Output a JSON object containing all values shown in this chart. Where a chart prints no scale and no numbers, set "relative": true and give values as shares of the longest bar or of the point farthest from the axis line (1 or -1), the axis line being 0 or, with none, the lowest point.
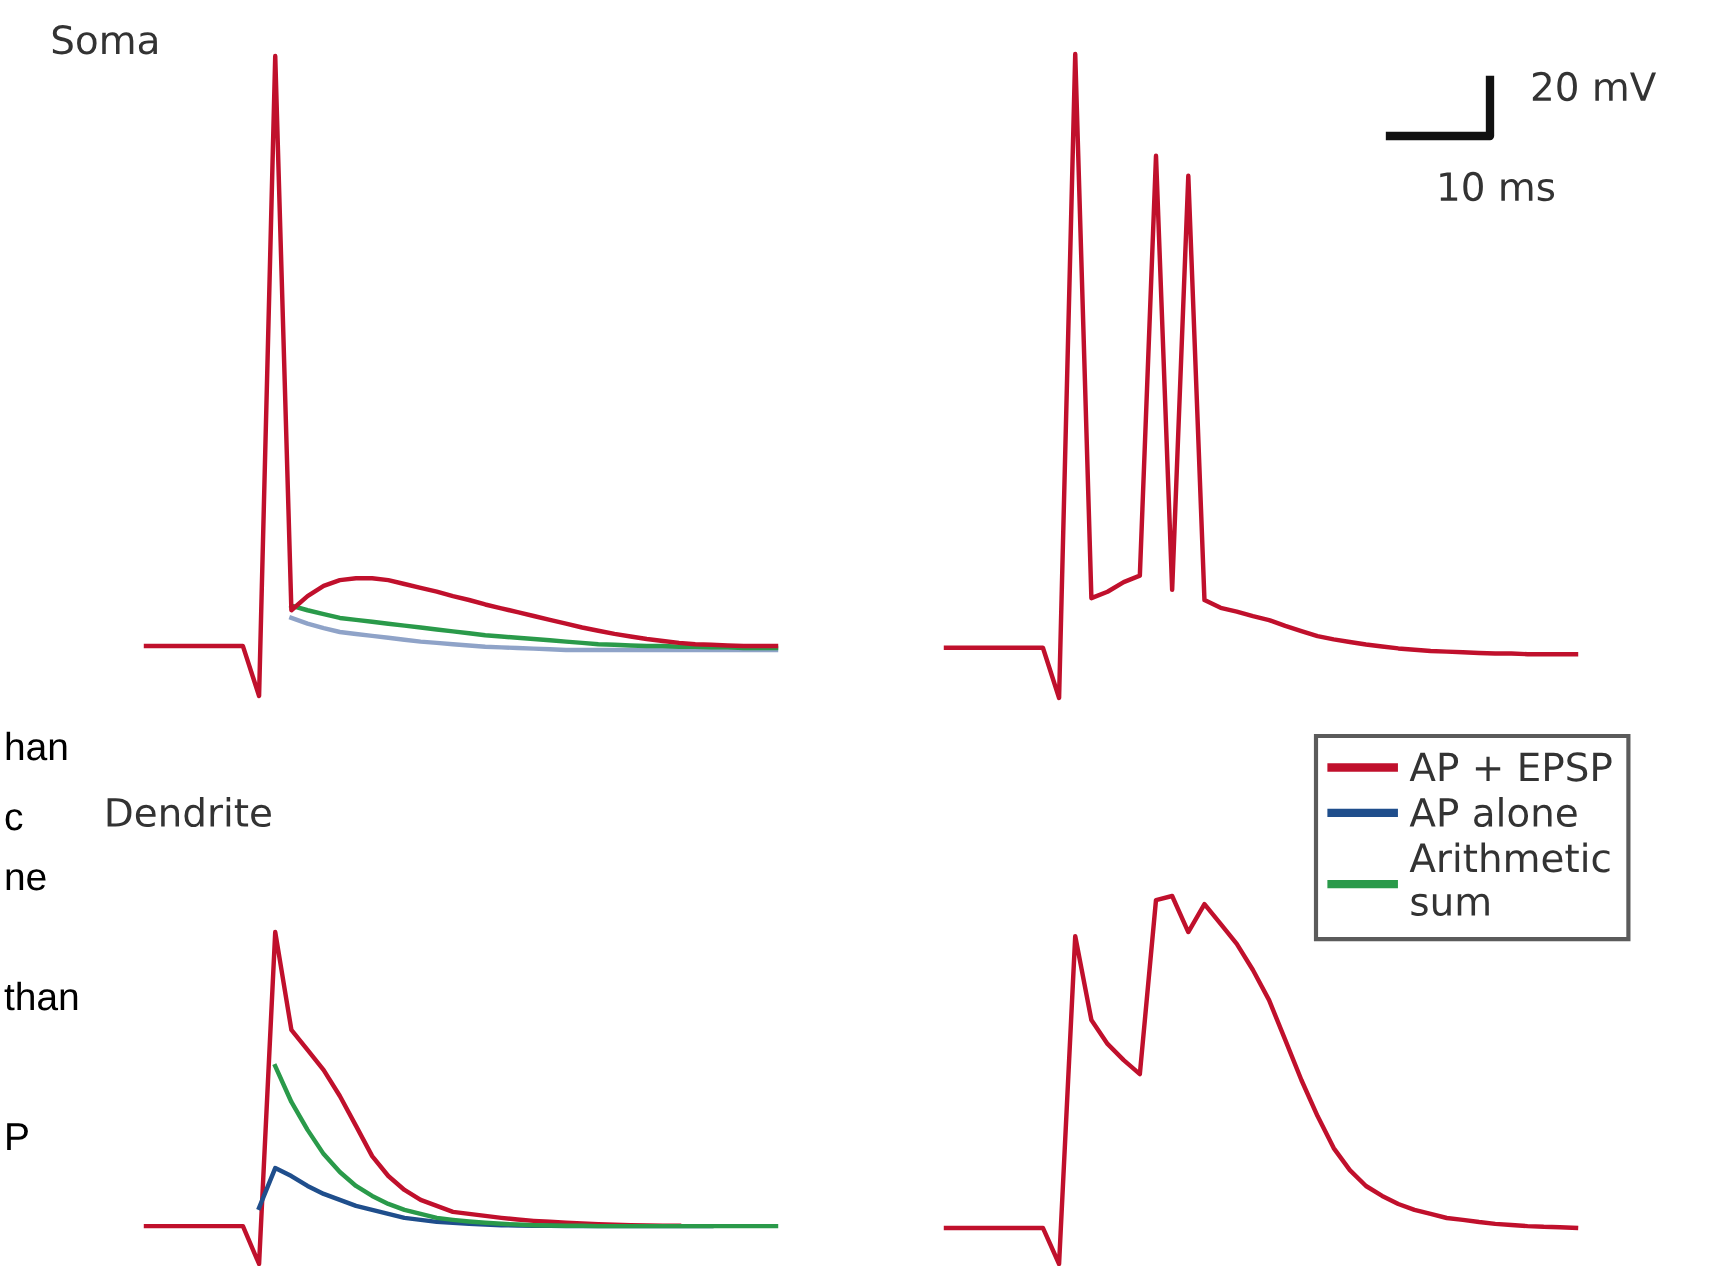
{
  "chart_data": [
    {
      "type": "line",
      "title": "Soma",
      "relative": true,
      "categories": [
        null,
        null,
        null,
        null,
        null,
        null,
        null,
        null,
        null,
        null,
        null,
        null,
        null,
        null,
        null,
        null,
        null,
        null,
        null,
        null,
        null,
        null,
        null,
        null,
        null,
        null,
        null,
        null,
        null,
        null,
        null,
        null,
        null,
        null,
        null,
        null,
        null,
        null,
        null,
        null
      ],
      "series": [
        {
          "color": "#8fa3c8",
          "values": [
            null,
            null,
            null,
            null,
            null,
            null,
            null,
            null,
            null,
            0.122,
            0.113,
            0.106,
            0.1,
            0.097,
            0.094,
            0.091,
            0.088,
            0.085,
            0.083,
            0.081,
            0.079,
            0.077,
            0.076,
            0.075,
            0.074,
            0.073,
            0.072,
            0.072,
            0.072,
            0.072,
            0.072,
            0.072,
            0.072,
            0.072,
            0.072,
            0.072,
            0.072,
            0.072,
            0.072,
            0.072
          ]
        },
        {
          "color": "#2a9a4a",
          "values": [
            null,
            null,
            null,
            null,
            null,
            null,
            null,
            null,
            null,
            0.141,
            0.134,
            0.128,
            0.122,
            0.119,
            0.116,
            0.113,
            0.11,
            0.107,
            0.104,
            0.101,
            0.098,
            0.095,
            0.093,
            0.091,
            0.089,
            0.087,
            0.085,
            0.083,
            0.081,
            0.08,
            0.079,
            0.078,
            0.078,
            0.077,
            0.077,
            0.076,
            0.076,
            0.075,
            0.075,
            0.075
          ]
        },
        {
          "color": "#c0102c",
          "values": [
            0.078,
            0.078,
            0.078,
            0.078,
            0.078,
            0.078,
            0.078,
            0,
            1,
            0.134,
            0.156,
            0.172,
            0.181,
            0.184,
            0.184,
            0.181,
            0.175,
            0.169,
            0.163,
            0.156,
            0.15,
            0.143,
            0.137,
            0.131,
            0.125,
            0.119,
            0.113,
            0.107,
            0.102,
            0.097,
            0.093,
            0.089,
            0.086,
            0.083,
            0.081,
            0.08,
            0.079,
            0.078,
            0.078,
            0.078
          ]
        }
      ]
    },
    {
      "type": "line",
      "relative": true,
      "annotations": [
        "20 mV",
        "10 ms"
      ],
      "categories": [
        null,
        null,
        null,
        null,
        null,
        null,
        null,
        null,
        null,
        null,
        null,
        null,
        null,
        null,
        null,
        null,
        null,
        null,
        null,
        null,
        null,
        null,
        null,
        null,
        null,
        null,
        null,
        null,
        null,
        null,
        null,
        null,
        null,
        null,
        null,
        null,
        null,
        null,
        null,
        null
      ],
      "series": [
        {
          "color": "#c0102c",
          "values": [
            0.078,
            0.078,
            0.078,
            0.078,
            0.078,
            0.078,
            0.078,
            0,
            1,
            0.155,
            0.165,
            0.18,
            0.19,
            0.842,
            0.168,
            0.811,
            0.152,
            0.14,
            0.134,
            0.127,
            0.121,
            0.112,
            0.104,
            0.096,
            0.091,
            0.087,
            0.083,
            0.08,
            0.077,
            0.075,
            0.073,
            0.072,
            0.071,
            0.07,
            0.069,
            0.069,
            0.068,
            0.068,
            0.068,
            0.068
          ]
        }
      ]
    },
    {
      "type": "line",
      "title": "Dendrite",
      "relative": true,
      "legend": "right",
      "annotations": [
        "han",
        "c",
        "ne",
        "than",
        "P"
      ],
      "categories": [
        null,
        null,
        null,
        null,
        null,
        null,
        null,
        null,
        null,
        null,
        null,
        null,
        null,
        null,
        null,
        null,
        null,
        null,
        null,
        null,
        null,
        null,
        null,
        null,
        null,
        null,
        null,
        null,
        null,
        null,
        null,
        null,
        null,
        null,
        null,
        null,
        null,
        null,
        null,
        null
      ],
      "series": [
        {
          "name": "AP + EPSP",
          "color": "#c0102c",
          "values": [
            0.114,
            0.114,
            0.114,
            0.114,
            0.114,
            0.114,
            0.114,
            0,
            1,
            0.705,
            0.645,
            0.584,
            0.506,
            0.416,
            0.325,
            0.265,
            0.223,
            0.193,
            0.175,
            0.157,
            0.151,
            0.145,
            0.139,
            0.134,
            0.13,
            0.127,
            0.124,
            0.122,
            0.12,
            0.118,
            0.117,
            0.116,
            0.115,
            0.115,
            null,
            null,
            null,
            null,
            null,
            null
          ]
        },
        {
          "name": "AP alone",
          "color": "#1f4e8c",
          "values": [
            null,
            null,
            null,
            null,
            null,
            null,
            null,
            0.169,
            0.289,
            0.265,
            0.235,
            0.211,
            0.193,
            0.175,
            0.163,
            0.151,
            0.139,
            0.133,
            0.127,
            0.124,
            0.121,
            0.119,
            0.117,
            0.116,
            0.115,
            0.115,
            0.114,
            0.114,
            0.114,
            0.114,
            0.114,
            0.114,
            0.114,
            0.114,
            0.114,
            0.114,
            null,
            null,
            null,
            null
          ]
        },
        {
          "name": "Arithmetic\nsum",
          "color": "#2a9a4a",
          "values": [
            null,
            null,
            null,
            null,
            null,
            null,
            null,
            null,
            0.596,
            0.488,
            0.404,
            0.331,
            0.277,
            0.235,
            0.205,
            0.181,
            0.163,
            0.151,
            0.139,
            0.133,
            0.128,
            0.124,
            0.121,
            0.119,
            0.117,
            0.116,
            0.115,
            0.115,
            0.114,
            0.114,
            0.114,
            0.114,
            0.114,
            0.114,
            0.114,
            0.114,
            0.114,
            0.114,
            0.114,
            0.114
          ]
        }
      ]
    },
    {
      "type": "line",
      "relative": true,
      "categories": [
        null,
        null,
        null,
        null,
        null,
        null,
        null,
        null,
        null,
        null,
        null,
        null,
        null,
        null,
        null,
        null,
        null,
        null,
        null,
        null,
        null,
        null,
        null,
        null,
        null,
        null,
        null,
        null,
        null,
        null,
        null,
        null,
        null,
        null,
        null,
        null,
        null,
        null,
        null,
        null
      ],
      "series": [
        {
          "color": "#c0102c",
          "values": [
            0.098,
            0.098,
            0.098,
            0.098,
            0.098,
            0.098,
            0.098,
            0,
            0.891,
            0.663,
            0.598,
            0.554,
            0.516,
            0.989,
            1,
            0.902,
            0.978,
            0.924,
            0.87,
            0.799,
            0.717,
            0.609,
            0.5,
            0.402,
            0.315,
            0.255,
            0.212,
            0.185,
            0.163,
            0.147,
            0.136,
            0.125,
            0.12,
            0.114,
            0.109,
            0.106,
            0.103,
            0.101,
            0.1,
            0.098
          ]
        }
      ]
    }
  ]
}
